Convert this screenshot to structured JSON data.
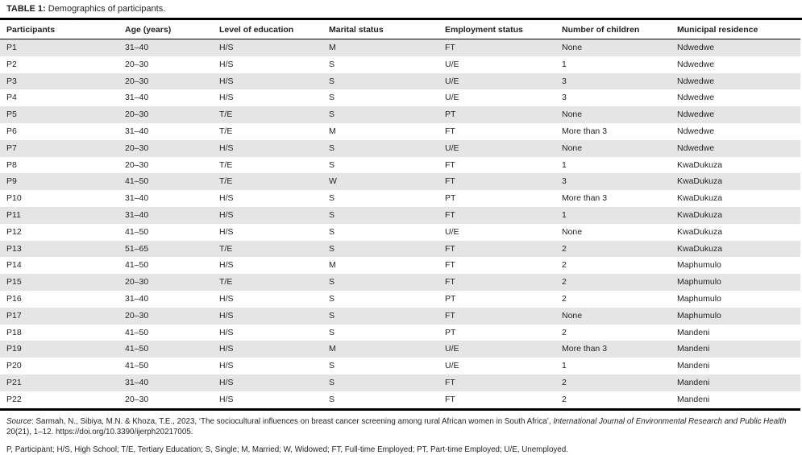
{
  "title": {
    "label": "TABLE 1:",
    "caption": "Demographics of participants."
  },
  "table": {
    "columns": [
      "Participants",
      "Age (years)",
      "Level of education",
      "Marital status",
      "Employment status",
      "Number of children",
      "Municipal residence"
    ],
    "rows": [
      [
        "P1",
        "31–40",
        "H/S",
        "M",
        "FT",
        "None",
        "Ndwedwe"
      ],
      [
        "P2",
        "20–30",
        "H/S",
        "S",
        "U/E",
        "1",
        "Ndwedwe"
      ],
      [
        "P3",
        "20–30",
        "H/S",
        "S",
        "U/E",
        "3",
        "Ndwedwe"
      ],
      [
        "P4",
        "31–40",
        "H/S",
        "S",
        "U/E",
        "3",
        "Ndwedwe"
      ],
      [
        "P5",
        "20–30",
        "T/E",
        "S",
        "PT",
        "None",
        "Ndwedwe"
      ],
      [
        "P6",
        "31–40",
        "T/E",
        "M",
        "FT",
        "More than 3",
        "Ndwedwe"
      ],
      [
        "P7",
        "20–30",
        "H/S",
        "S",
        "U/E",
        "None",
        "Ndwedwe"
      ],
      [
        "P8",
        "20–30",
        "T/E",
        "S",
        "FT",
        "1",
        "KwaDukuza"
      ],
      [
        "P9",
        "41–50",
        "T/E",
        "W",
        "FT",
        "3",
        "KwaDukuza"
      ],
      [
        "P10",
        "31–40",
        "H/S",
        "S",
        "PT",
        "More than 3",
        "KwaDukuza"
      ],
      [
        "P11",
        "31–40",
        "H/S",
        "S",
        "FT",
        "1",
        "KwaDukuza"
      ],
      [
        "P12",
        "41–50",
        "H/S",
        "S",
        "U/E",
        "None",
        "KwaDukuza"
      ],
      [
        "P13",
        "51–65",
        "T/E",
        "S",
        "FT",
        "2",
        "KwaDukuza"
      ],
      [
        "P14",
        "41–50",
        "H/S",
        "M",
        "FT",
        "2",
        "Maphumulo"
      ],
      [
        "P15",
        "20–30",
        "T/E",
        "S",
        "FT",
        "2",
        "Maphumulo"
      ],
      [
        "P16",
        "31–40",
        "H/S",
        "S",
        "PT",
        "2",
        "Maphumulo"
      ],
      [
        "P17",
        "20–30",
        "H/S",
        "S",
        "FT",
        "None",
        "Maphumulo"
      ],
      [
        "P18",
        "41–50",
        "H/S",
        "S",
        "PT",
        "2",
        "Mandeni"
      ],
      [
        "P19",
        "41–50",
        "H/S",
        "M",
        "U/E",
        "More than 3",
        "Mandeni"
      ],
      [
        "P20",
        "41–50",
        "H/S",
        "S",
        "U/E",
        "1",
        "Mandeni"
      ],
      [
        "P21",
        "31–40",
        "H/S",
        "S",
        "FT",
        "2",
        "Mandeni"
      ],
      [
        "P22",
        "20–30",
        "H/S",
        "S",
        "FT",
        "2",
        "Mandeni"
      ]
    ]
  },
  "footer": {
    "source_segments": [
      {
        "text": "Source",
        "style": "italic"
      },
      {
        "text": ": Sarmah, N., Sibiya, M.N. & Khoza, T.E., 2023, ‘The sociocultural influences on breast cancer screening among rural African women in South Africa’, ",
        "style": "regular"
      },
      {
        "text": "International Journal of Environmental Research and Public Health",
        "style": "italic"
      },
      {
        "text": " 20(21), 1–12. https://doi.org/10.3390/ijerph20217005.",
        "style": "regular"
      }
    ],
    "abbreviations": "P, Participant; H/S, High School; T/E, Tertiary Education; S, Single; M, Married; W, Widowed; FT, Full-time Employed; PT, Part-time Employed; U/E, Unemployed."
  },
  "colors": {
    "row_stripe": "#e6e5e5",
    "rule": "#000000",
    "text": "#231f20"
  }
}
